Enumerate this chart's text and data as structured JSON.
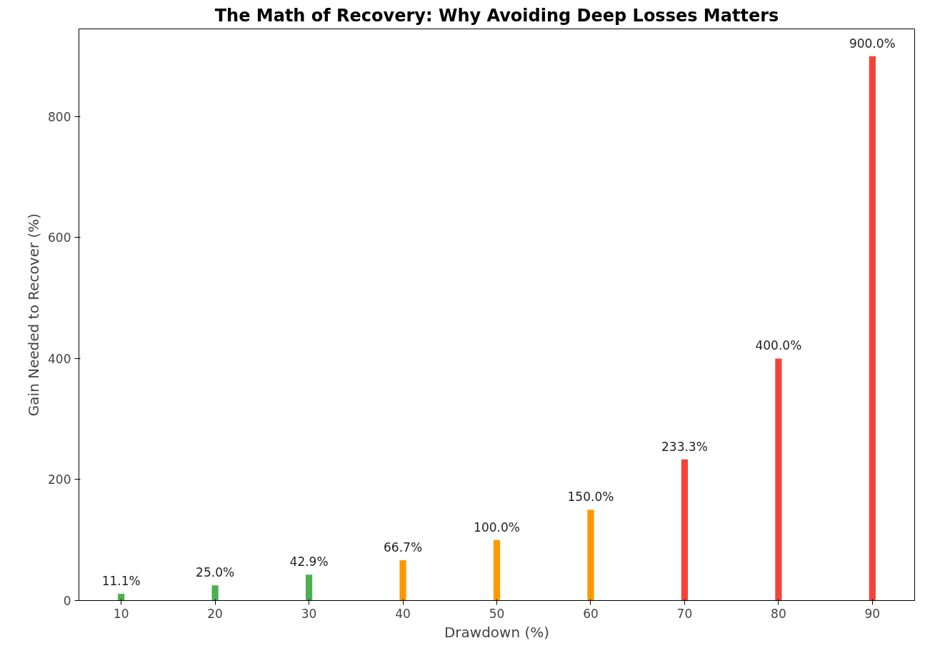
{
  "chart_data": {
    "type": "bar",
    "title": "The Math of Recovery: Why Avoiding Deep Losses Matters",
    "xlabel": "Drawdown (%)",
    "ylabel": "Gain Needed to Recover (%)",
    "x": [
      10,
      20,
      30,
      40,
      50,
      60,
      70,
      80,
      90
    ],
    "values": [
      11.1,
      25.0,
      42.9,
      66.7,
      100.0,
      150.0,
      233.3,
      400.0,
      900.0
    ],
    "colors": [
      "#4caf50",
      "#4caf50",
      "#4caf50",
      "#ff9800",
      "#ff9800",
      "#ff9800",
      "#f44336",
      "#f44336",
      "#f44336"
    ],
    "value_labels": [
      "11.1%",
      "25.0%",
      "42.9%",
      "66.7%",
      "100.0%",
      "150.0%",
      "233.3%",
      "400.0%",
      "900.0%"
    ],
    "xlim": [
      5.5,
      94.5
    ],
    "ylim": [
      0,
      945
    ],
    "xticks": [
      10,
      20,
      30,
      40,
      50,
      60,
      70,
      80,
      90
    ],
    "yticks": [
      0,
      200,
      400,
      600,
      800
    ],
    "grid": false
  }
}
